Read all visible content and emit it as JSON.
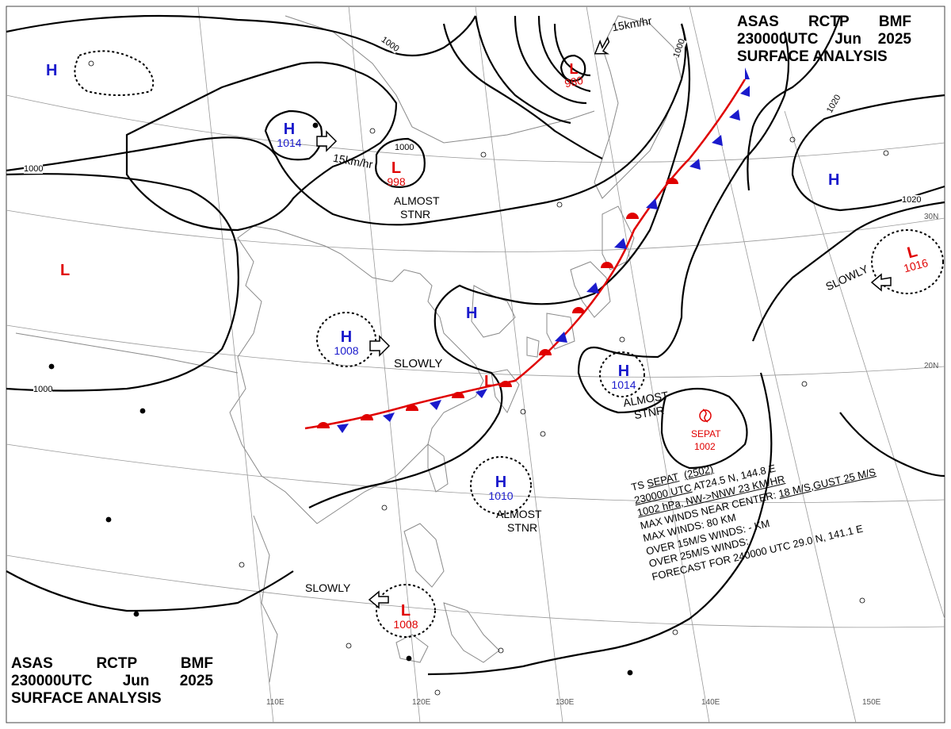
{
  "header": {
    "product": [
      "ASAS",
      "RCTP",
      "BMF"
    ],
    "time": "230000UTC",
    "month": "Jun",
    "year": "2025",
    "title": "SURFACE ANALYSIS"
  },
  "pressure_centers": [
    {
      "type": "H",
      "value": "1014",
      "color": "#1a1acc"
    },
    {
      "type": "H",
      "value": "1008",
      "color": "#1a1acc"
    },
    {
      "type": "H",
      "value": "1010",
      "color": "#1a1acc"
    },
    {
      "type": "H",
      "value": "1014",
      "color": "#1a1acc"
    },
    {
      "type": "H",
      "value": "",
      "color": "#1a1acc"
    },
    {
      "type": "H",
      "value": "",
      "color": "#1a1acc"
    },
    {
      "type": "H",
      "value": "",
      "color": "#1a1acc"
    },
    {
      "type": "L",
      "value": "998",
      "color": "#e00000"
    },
    {
      "type": "L",
      "value": "980",
      "color": "#e00000"
    },
    {
      "type": "L",
      "value": "1016",
      "color": "#e00000"
    },
    {
      "type": "L",
      "value": "1008",
      "color": "#e00000"
    },
    {
      "type": "L",
      "value": "",
      "color": "#e00000"
    },
    {
      "type": "L",
      "value": "",
      "color": "#e00000"
    }
  ],
  "motion_labels": [
    "15km/hr",
    "15km/hr",
    "ALMOST",
    "STNR",
    "SLOWLY",
    "SLOWLY",
    "ALMOST",
    "STNR",
    "ALMOST",
    "STNR",
    "SLOWLY"
  ],
  "isobar_labels": [
    "1000",
    "1000",
    "1000",
    "1000",
    "1000",
    "1020",
    "1020"
  ],
  "typhoon": {
    "name": "SEPAT",
    "pressure": "1002",
    "color": "#e00000"
  },
  "latitude_labels": [
    "30N",
    "20N"
  ],
  "longitude_labels": [
    "110E",
    "120E",
    "130E",
    "140E",
    "150E"
  ],
  "storm_bulletin": {
    "line1_prefix": "TS ",
    "line1_name": "SEPAT",
    "line1_code": "(2502)",
    "line2_time": "230000 UTC",
    "line2_pos": " AT24.5 N, 144.8 E",
    "line3_press": "1002 hPa, NW->NNW",
    "line3_speed": " 23 KM/HR",
    "line4_prefix": "MAX WINDS NEAR CENTER: ",
    "line4_wind": "18 M/S,GUST 25 M/S",
    "line5": "MAX WINDS: 80 KM",
    "line6": "OVER 15M/S WINDS: - KM",
    "line7_prefix": "OVER 25M/S WINDS: ",
    "line7_forecast": "FORECAST FOR 240000 UTC 29.0 N, 141.1 E"
  },
  "colors": {
    "high": "#1a1acc",
    "low": "#e00000",
    "isobar": "#000000",
    "grid": "#888888",
    "coast": "#9a9a9a"
  }
}
